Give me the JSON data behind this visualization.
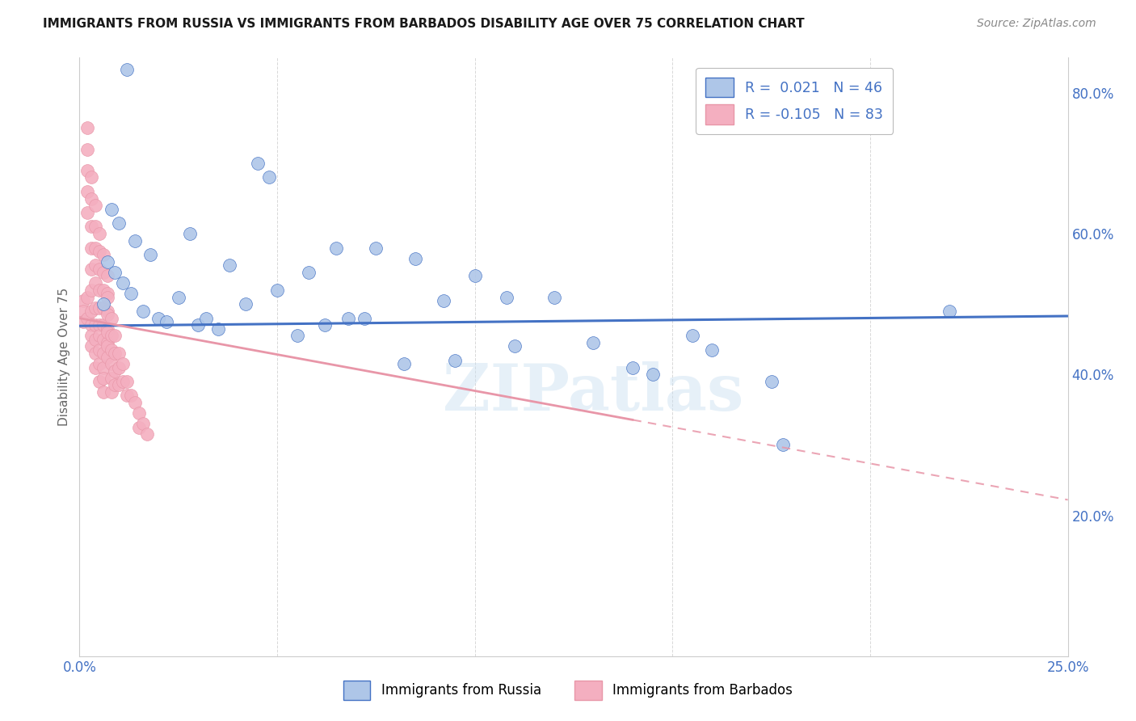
{
  "title": "IMMIGRANTS FROM RUSSIA VS IMMIGRANTS FROM BARBADOS DISABILITY AGE OVER 75 CORRELATION CHART",
  "source": "Source: ZipAtlas.com",
  "ylabel": "Disability Age Over 75",
  "x_min": 0.0,
  "x_max": 0.25,
  "y_min": 0.0,
  "y_max": 0.85,
  "y_ticks_right": [
    0.2,
    0.4,
    0.6,
    0.8
  ],
  "y_tick_labels_right": [
    "20.0%",
    "40.0%",
    "60.0%",
    "80.0%"
  ],
  "russia_R": 0.021,
  "russia_N": 46,
  "barbados_R": -0.105,
  "barbados_N": 83,
  "russia_color": "#aec6e8",
  "barbados_color": "#f4afc0",
  "russia_line_color": "#4472C4",
  "barbados_line_color": "#e896a8",
  "russia_scatter_x": [
    0.012,
    0.048,
    0.008,
    0.01,
    0.014,
    0.018,
    0.007,
    0.009,
    0.011,
    0.013,
    0.006,
    0.016,
    0.02,
    0.022,
    0.03,
    0.035,
    0.042,
    0.05,
    0.038,
    0.028,
    0.058,
    0.065,
    0.025,
    0.032,
    0.045,
    0.075,
    0.082,
    0.095,
    0.108,
    0.12,
    0.068,
    0.085,
    0.1,
    0.11,
    0.13,
    0.14,
    0.145,
    0.155,
    0.16,
    0.092,
    0.072,
    0.062,
    0.055,
    0.175,
    0.22,
    0.178
  ],
  "russia_scatter_y": [
    0.833,
    0.68,
    0.635,
    0.615,
    0.59,
    0.57,
    0.56,
    0.545,
    0.53,
    0.515,
    0.5,
    0.49,
    0.48,
    0.475,
    0.47,
    0.465,
    0.5,
    0.52,
    0.555,
    0.6,
    0.545,
    0.58,
    0.51,
    0.48,
    0.7,
    0.58,
    0.415,
    0.42,
    0.51,
    0.51,
    0.48,
    0.565,
    0.54,
    0.44,
    0.445,
    0.41,
    0.4,
    0.455,
    0.435,
    0.505,
    0.48,
    0.47,
    0.455,
    0.39,
    0.49,
    0.3
  ],
  "barbados_scatter_x": [
    0.001,
    0.001,
    0.001,
    0.002,
    0.002,
    0.002,
    0.002,
    0.002,
    0.002,
    0.002,
    0.003,
    0.003,
    0.003,
    0.003,
    0.003,
    0.003,
    0.003,
    0.003,
    0.003,
    0.003,
    0.004,
    0.004,
    0.004,
    0.004,
    0.004,
    0.004,
    0.004,
    0.004,
    0.004,
    0.004,
    0.005,
    0.005,
    0.005,
    0.005,
    0.005,
    0.005,
    0.005,
    0.005,
    0.005,
    0.005,
    0.006,
    0.006,
    0.006,
    0.006,
    0.006,
    0.006,
    0.006,
    0.006,
    0.006,
    0.006,
    0.007,
    0.007,
    0.007,
    0.007,
    0.007,
    0.007,
    0.007,
    0.007,
    0.007,
    0.007,
    0.008,
    0.008,
    0.008,
    0.008,
    0.008,
    0.008,
    0.009,
    0.009,
    0.009,
    0.009,
    0.01,
    0.01,
    0.01,
    0.011,
    0.011,
    0.012,
    0.012,
    0.013,
    0.014,
    0.015,
    0.015,
    0.016,
    0.017
  ],
  "barbados_scatter_y": [
    0.505,
    0.49,
    0.475,
    0.75,
    0.72,
    0.69,
    0.66,
    0.63,
    0.51,
    0.48,
    0.68,
    0.65,
    0.61,
    0.58,
    0.55,
    0.52,
    0.49,
    0.47,
    0.455,
    0.44,
    0.64,
    0.61,
    0.58,
    0.555,
    0.53,
    0.495,
    0.47,
    0.45,
    0.43,
    0.41,
    0.6,
    0.575,
    0.55,
    0.52,
    0.495,
    0.47,
    0.455,
    0.435,
    0.415,
    0.39,
    0.57,
    0.545,
    0.52,
    0.495,
    0.47,
    0.45,
    0.43,
    0.41,
    0.395,
    0.375,
    0.54,
    0.515,
    0.49,
    0.465,
    0.445,
    0.425,
    0.51,
    0.485,
    0.46,
    0.44,
    0.48,
    0.455,
    0.435,
    0.415,
    0.395,
    0.375,
    0.455,
    0.43,
    0.405,
    0.385,
    0.43,
    0.41,
    0.385,
    0.415,
    0.39,
    0.39,
    0.37,
    0.37,
    0.36,
    0.345,
    0.325,
    0.33,
    0.315
  ],
  "russia_trendline_x": [
    0.0,
    0.25
  ],
  "russia_trendline_y": [
    0.469,
    0.483
  ],
  "barbados_trendline_x": [
    0.0,
    0.25
  ],
  "barbados_trendline_y": [
    0.48,
    0.222
  ],
  "watermark": "ZIPatlas",
  "background_color": "#ffffff",
  "grid_color": "#d8d8d8"
}
